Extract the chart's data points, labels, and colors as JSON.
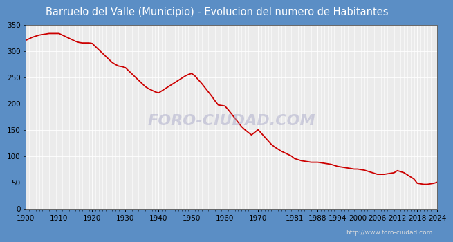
{
  "title": "Barruelo del Valle (Municipio) - Evolucion del numero de Habitantes",
  "title_bg_color": "#5b8ec5",
  "title_text_color": "#ffffff",
  "plot_bg_color": "#ebebeb",
  "fig_bg_color": "#5b8ec5",
  "line_color": "#cc0000",
  "line_width": 1.3,
  "watermark_text": "FORO-CIUDAD.COM",
  "watermark_color": "#b0b0cc",
  "url_text": "http://www.foro-ciudad.com",
  "years": [
    1900,
    1901,
    1902,
    1903,
    1904,
    1905,
    1906,
    1907,
    1908,
    1909,
    1910,
    1911,
    1912,
    1913,
    1914,
    1915,
    1916,
    1917,
    1918,
    1919,
    1920,
    1921,
    1922,
    1923,
    1924,
    1925,
    1926,
    1927,
    1928,
    1929,
    1930,
    1931,
    1932,
    1933,
    1934,
    1935,
    1936,
    1937,
    1938,
    1939,
    1940,
    1941,
    1942,
    1943,
    1944,
    1945,
    1946,
    1947,
    1948,
    1949,
    1950,
    1951,
    1952,
    1953,
    1954,
    1955,
    1956,
    1957,
    1958,
    1959,
    1960,
    1961,
    1962,
    1963,
    1964,
    1965,
    1966,
    1967,
    1968,
    1969,
    1970,
    1971,
    1972,
    1973,
    1974,
    1975,
    1976,
    1977,
    1978,
    1979,
    1980,
    1981,
    1982,
    1983,
    1984,
    1985,
    1986,
    1987,
    1988,
    1989,
    1990,
    1991,
    1992,
    1993,
    1994,
    1995,
    1996,
    1997,
    1998,
    1999,
    2000,
    2001,
    2002,
    2003,
    2004,
    2005,
    2006,
    2007,
    2008,
    2009,
    2010,
    2011,
    2012,
    2013,
    2014,
    2015,
    2016,
    2017,
    2018,
    2019,
    2020,
    2021,
    2022,
    2023,
    2024
  ],
  "population": [
    320,
    323,
    326,
    328,
    330,
    331,
    332,
    333,
    333,
    333,
    333,
    330,
    327,
    324,
    321,
    318,
    316,
    315,
    315,
    315,
    314,
    308,
    302,
    296,
    290,
    284,
    278,
    274,
    271,
    270,
    268,
    262,
    256,
    250,
    244,
    238,
    232,
    228,
    225,
    222,
    220,
    224,
    228,
    232,
    236,
    240,
    244,
    248,
    252,
    255,
    257,
    252,
    245,
    238,
    230,
    222,
    214,
    205,
    197,
    196,
    195,
    188,
    180,
    172,
    164,
    156,
    150,
    145,
    140,
    145,
    150,
    143,
    136,
    129,
    122,
    117,
    113,
    109,
    106,
    103,
    100,
    95,
    93,
    91,
    90,
    89,
    88,
    88,
    88,
    87,
    86,
    85,
    84,
    82,
    80,
    79,
    78,
    77,
    76,
    75,
    75,
    74,
    73,
    71,
    69,
    67,
    65,
    65,
    65,
    66,
    67,
    68,
    72,
    70,
    68,
    64,
    60,
    56,
    48,
    47,
    46,
    46,
    47,
    48,
    50
  ],
  "tick_years": [
    1900,
    1910,
    1920,
    1930,
    1940,
    1950,
    1960,
    1970,
    1981,
    1988,
    1994,
    2000,
    2006,
    2012,
    2018,
    2024
  ],
  "ylim": [
    0,
    350
  ],
  "yticks": [
    0,
    50,
    100,
    150,
    200,
    250,
    300,
    350
  ],
  "grid_color": "#ffffff",
  "tick_label_fontsize": 7.5,
  "title_fontsize": 10.5
}
